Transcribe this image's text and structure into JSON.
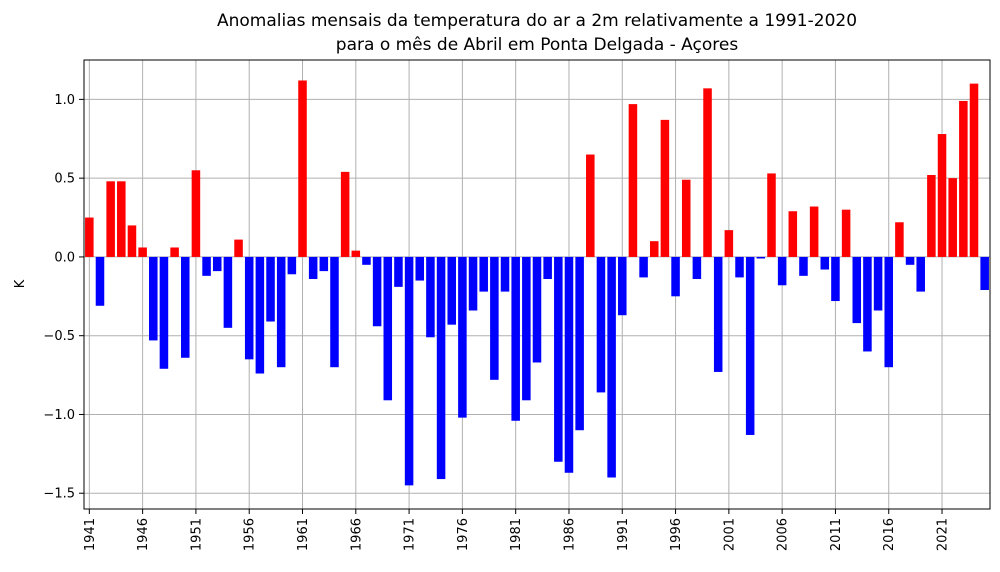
{
  "chart_data": {
    "type": "bar",
    "title_line1": "Anomalias mensais da temperatura do ar a 2m relativamente a 1991-2020",
    "title_line2": "para o mês de Abril em Ponta Delgada - Açores",
    "xlabel": "",
    "ylabel": "K",
    "ylim": [
      -1.6,
      1.25
    ],
    "xlim": [
      1940.5,
      2025.5
    ],
    "yticks": [
      -1.5,
      -1.0,
      -0.5,
      0.0,
      0.5,
      1.0
    ],
    "ytick_labels": [
      "−1.5",
      "−1.0",
      "−0.5",
      "0.0",
      "0.5",
      "1.0"
    ],
    "xticks": [
      1941,
      1946,
      1951,
      1956,
      1961,
      1966,
      1971,
      1976,
      1981,
      1986,
      1991,
      1996,
      2001,
      2006,
      2011,
      2016,
      2021
    ],
    "xtick_labels": [
      "1941",
      "1946",
      "1951",
      "1956",
      "1961",
      "1966",
      "1971",
      "1976",
      "1981",
      "1986",
      "1991",
      "1996",
      "2001",
      "2006",
      "2011",
      "2016",
      "2021"
    ],
    "grid": true,
    "colors": {
      "positive": "#ff0000",
      "negative": "#0000ff"
    },
    "categories": [
      1941,
      1942,
      1943,
      1944,
      1945,
      1946,
      1947,
      1948,
      1949,
      1950,
      1951,
      1952,
      1953,
      1954,
      1955,
      1956,
      1957,
      1958,
      1959,
      1960,
      1961,
      1962,
      1963,
      1964,
      1965,
      1966,
      1967,
      1968,
      1969,
      1970,
      1971,
      1972,
      1973,
      1974,
      1975,
      1976,
      1977,
      1978,
      1979,
      1980,
      1981,
      1982,
      1983,
      1984,
      1985,
      1986,
      1987,
      1988,
      1989,
      1990,
      1991,
      1992,
      1993,
      1994,
      1995,
      1996,
      1997,
      1998,
      1999,
      2000,
      2001,
      2002,
      2003,
      2004,
      2005,
      2006,
      2007,
      2008,
      2009,
      2010,
      2011,
      2012,
      2013,
      2014,
      2015,
      2016,
      2017,
      2018,
      2019,
      2020,
      2021,
      2022,
      2023,
      2024,
      2025
    ],
    "values": [
      0.25,
      -0.31,
      0.48,
      0.48,
      0.2,
      0.06,
      -0.53,
      -0.71,
      0.06,
      -0.64,
      0.55,
      -0.12,
      -0.09,
      -0.45,
      0.11,
      -0.65,
      -0.74,
      -0.41,
      -0.7,
      -0.11,
      1.12,
      -0.14,
      -0.09,
      -0.7,
      0.54,
      0.04,
      -0.05,
      -0.44,
      -0.91,
      -0.19,
      -1.45,
      -0.15,
      -0.51,
      -1.41,
      -0.43,
      -1.02,
      -0.34,
      -0.22,
      -0.78,
      -0.22,
      -1.04,
      -0.91,
      -0.67,
      -0.14,
      -1.3,
      -1.37,
      -1.1,
      0.65,
      -0.86,
      -1.4,
      -0.37,
      0.97,
      -0.13,
      0.1,
      0.87,
      -0.25,
      0.49,
      -0.14,
      1.07,
      -0.73,
      0.17,
      -0.13,
      -1.13,
      -0.01,
      0.53,
      -0.18,
      0.29,
      -0.12,
      0.32,
      -0.08,
      -0.28,
      0.3,
      -0.42,
      -0.6,
      -0.34,
      -0.7,
      0.22,
      -0.05,
      -0.22,
      0.52,
      0.78,
      0.5,
      0.99,
      1.1,
      -0.21
    ]
  }
}
